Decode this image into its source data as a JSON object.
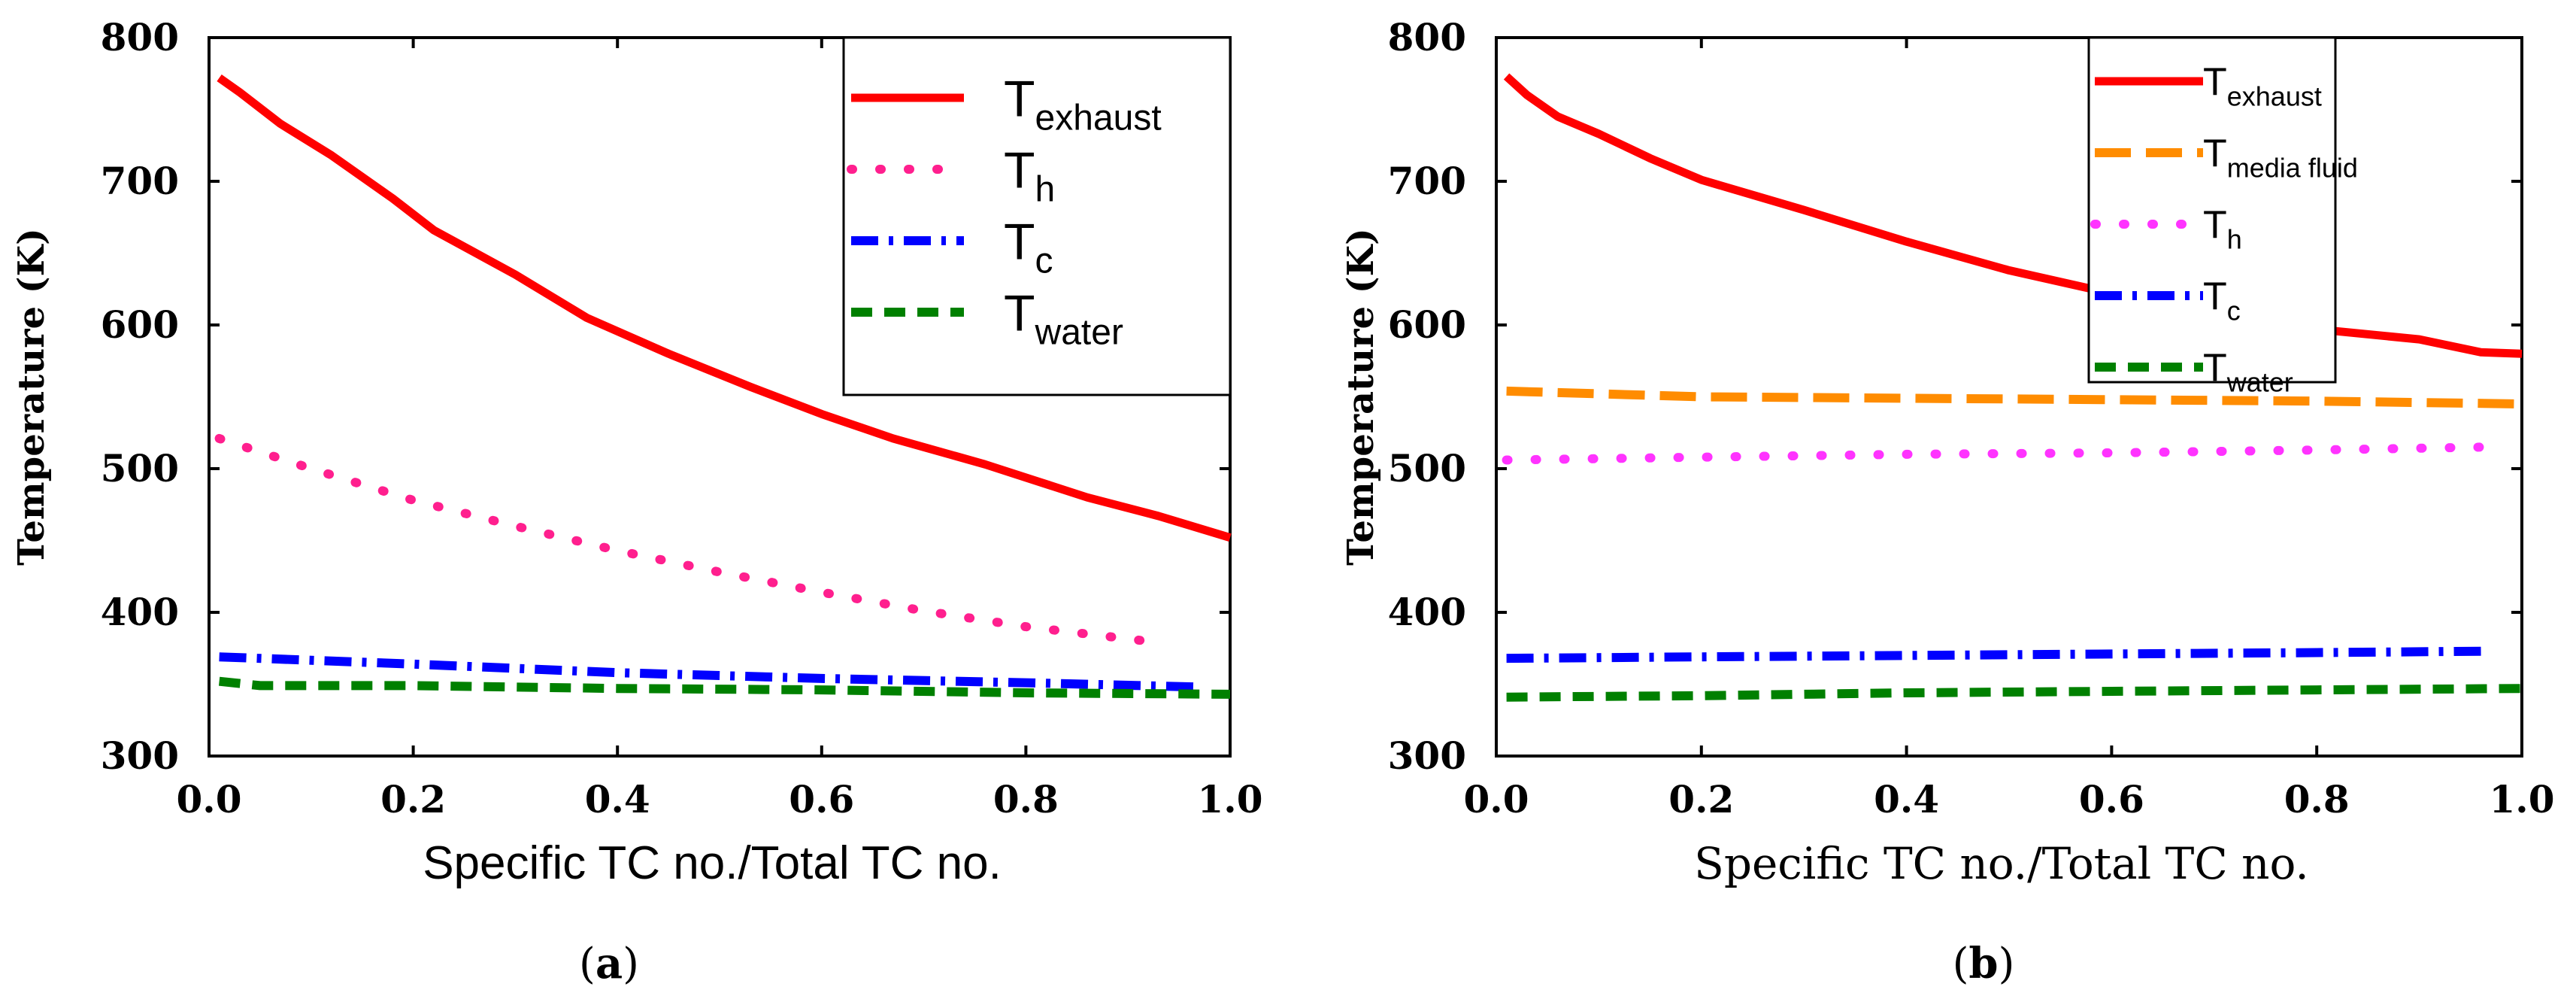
{
  "chart_data": [
    {
      "type": "line",
      "panel": "a",
      "caption": {
        "open": "(",
        "letter": "a",
        "close": ")"
      },
      "xlabel": "Specific TC no./Total TC no.",
      "ylabel": "Temperature (K)",
      "xlim": [
        0,
        1.0
      ],
      "ylim": [
        300,
        800
      ],
      "xticks": [
        "0.0",
        "0.2",
        "0.4",
        "0.6",
        "0.8",
        "1.0"
      ],
      "yticks": [
        "300",
        "400",
        "500",
        "600",
        "700",
        "800"
      ],
      "legend_position": "top-right",
      "series": [
        {
          "name": "T",
          "sub": "exhaust",
          "color": "#ff0000",
          "style": "solid",
          "x": [
            0.01,
            0.03,
            0.07,
            0.12,
            0.18,
            0.22,
            0.3,
            0.37,
            0.45,
            0.53,
            0.6,
            0.67,
            0.76,
            0.86,
            0.93,
            1.0
          ],
          "y": [
            772,
            762,
            740,
            718,
            688,
            666,
            635,
            605,
            580,
            557,
            538,
            521,
            503,
            480,
            467,
            452
          ]
        },
        {
          "name": "T",
          "sub": "h",
          "color": "#ff1f8e",
          "style": "dotted",
          "x": [
            0.01,
            0.1,
            0.2,
            0.3,
            0.4,
            0.5,
            0.6,
            0.7,
            0.8,
            0.93
          ],
          "y": [
            521,
            500,
            478,
            460,
            443,
            428,
            414,
            401,
            390,
            379
          ]
        },
        {
          "name": "T",
          "sub": "c",
          "color": "#0000ff",
          "style": "dashdot",
          "x": [
            0.01,
            0.2,
            0.4,
            0.6,
            0.8,
            0.97
          ],
          "y": [
            369,
            364,
            358,
            354,
            351,
            348
          ]
        },
        {
          "name": "T",
          "sub": "water",
          "color": "#008000",
          "style": "dashed",
          "x": [
            0.01,
            0.05,
            0.2,
            0.4,
            0.6,
            0.8,
            1.0
          ],
          "y": [
            352,
            349,
            349,
            347,
            346,
            344,
            343
          ]
        }
      ]
    },
    {
      "type": "line",
      "panel": "b",
      "caption": {
        "open": "(",
        "letter": "b",
        "close": ")"
      },
      "xlabel": "Specific TC no./Total TC no.",
      "ylabel": "Temperature (K)",
      "xlim": [
        0,
        1.0
      ],
      "ylim": [
        300,
        800
      ],
      "xticks": [
        "0.0",
        "0.2",
        "0.4",
        "0.6",
        "0.8",
        "1.0"
      ],
      "yticks": [
        "300",
        "400",
        "500",
        "600",
        "700",
        "800"
      ],
      "legend_position": "top-right",
      "series": [
        {
          "name": "T",
          "sub": "exhaust",
          "color": "#ff0000",
          "style": "solid",
          "x": [
            0.01,
            0.03,
            0.06,
            0.1,
            0.15,
            0.2,
            0.3,
            0.4,
            0.5,
            0.6,
            0.7,
            0.8,
            0.9,
            0.96,
            1.0
          ],
          "y": [
            773,
            760,
            745,
            733,
            716,
            701,
            680,
            658,
            638,
            622,
            608,
            597,
            590,
            581,
            580
          ]
        },
        {
          "name": "T",
          "sub": "media fluid",
          "color": "#ff8c00",
          "style": "longdash",
          "x": [
            0.01,
            0.2,
            0.4,
            0.6,
            0.8,
            1.0
          ],
          "y": [
            554,
            550,
            549,
            548,
            547,
            545
          ]
        },
        {
          "name": "T",
          "sub": "h",
          "color": "#ff33ff",
          "style": "dotted",
          "x": [
            0.01,
            0.2,
            0.4,
            0.6,
            0.8,
            0.96
          ],
          "y": [
            506,
            508,
            510,
            511,
            513,
            515
          ]
        },
        {
          "name": "T",
          "sub": "c",
          "color": "#0000ff",
          "style": "dashdot",
          "x": [
            0.01,
            0.2,
            0.4,
            0.6,
            0.8,
            0.97
          ],
          "y": [
            368,
            369,
            370,
            371,
            372,
            373
          ]
        },
        {
          "name": "T",
          "sub": "water",
          "color": "#008000",
          "style": "dashed",
          "x": [
            0.01,
            0.2,
            0.4,
            0.6,
            0.8,
            1.0
          ],
          "y": [
            341,
            342,
            344,
            345,
            346,
            347
          ]
        }
      ]
    }
  ]
}
